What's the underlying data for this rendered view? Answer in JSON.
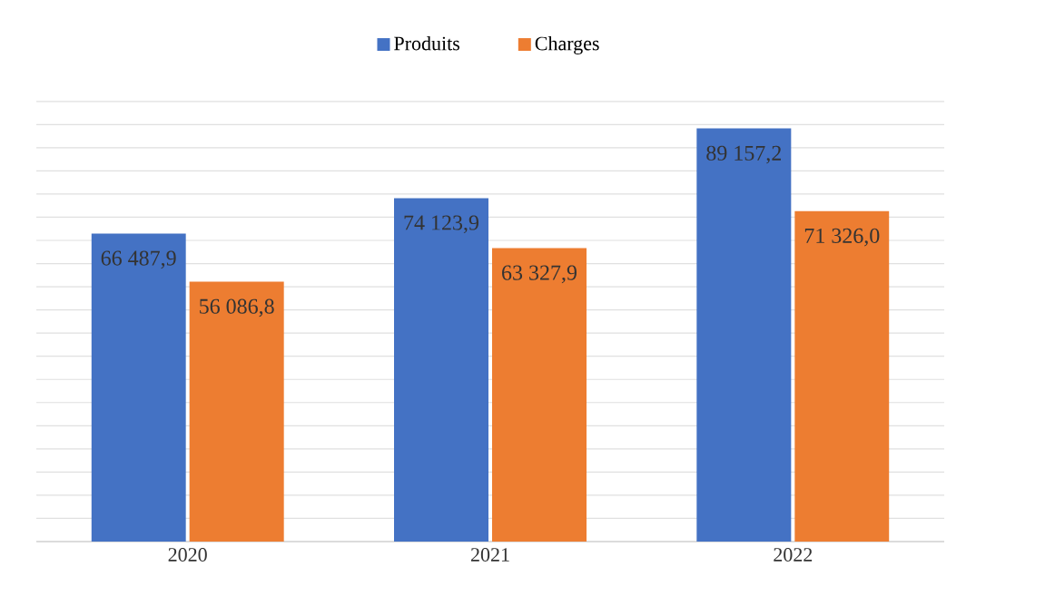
{
  "chart_data": {
    "type": "bar",
    "categories": [
      "2020",
      "2021",
      "2022"
    ],
    "series": [
      {
        "name": "Produits",
        "color": "#4472c4",
        "values": [
          66487.9,
          74123.9,
          89157.2
        ],
        "value_labels": [
          "66 487,9",
          "74 123,9",
          "89 157,2"
        ]
      },
      {
        "name": "Charges",
        "color": "#ed7d31",
        "values": [
          56086.8,
          63327.9,
          71326.0
        ],
        "value_labels": [
          "56 086,8",
          "63 327,9",
          "71 326,0"
        ]
      }
    ],
    "tick_labels": "x",
    "grid": "y",
    "legend": "top"
  }
}
